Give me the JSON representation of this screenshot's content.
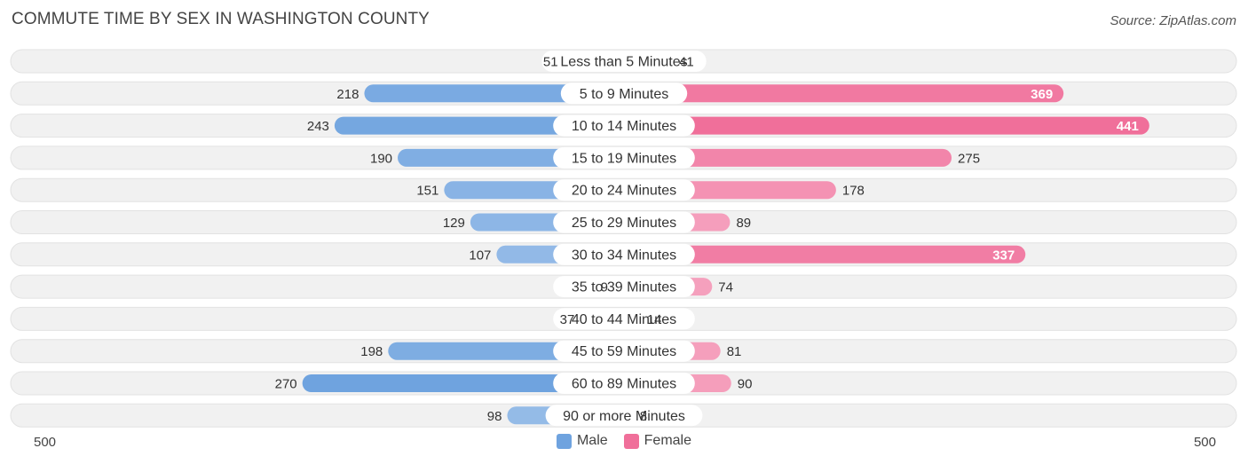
{
  "header": {
    "title": "COMMUTE TIME BY SEX IN WASHINGTON COUNTY",
    "source": "Source: ZipAtlas.com"
  },
  "axis": {
    "left_label": "500",
    "right_label": "500"
  },
  "legend": {
    "male_label": "Male",
    "female_label": "Female"
  },
  "colors": {
    "male": "#6fa3df",
    "male_light": "#a9c8ec",
    "female": "#f06f9a",
    "female_light": "#f6aac4",
    "row_bg": "#f1f1f1"
  },
  "chart_data": {
    "type": "bar",
    "orientation": "horizontal-diverging",
    "title": "COMMUTE TIME BY SEX IN WASHINGTON COUNTY",
    "categories": [
      "Less than 5 Minutes",
      "5 to 9 Minutes",
      "10 to 14 Minutes",
      "15 to 19 Minutes",
      "20 to 24 Minutes",
      "25 to 29 Minutes",
      "30 to 34 Minutes",
      "35 to 39 Minutes",
      "40 to 44 Minutes",
      "45 to 59 Minutes",
      "60 to 89 Minutes",
      "90 or more Minutes"
    ],
    "series": [
      {
        "name": "Male",
        "values": [
          51,
          218,
          243,
          190,
          151,
          129,
          107,
          9,
          37,
          198,
          270,
          98
        ]
      },
      {
        "name": "Female",
        "values": [
          41,
          369,
          441,
          275,
          178,
          89,
          337,
          74,
          14,
          81,
          90,
          8
        ]
      }
    ],
    "xlim": [
      -500,
      500
    ],
    "legend_position": "bottom-center",
    "grid": false
  }
}
